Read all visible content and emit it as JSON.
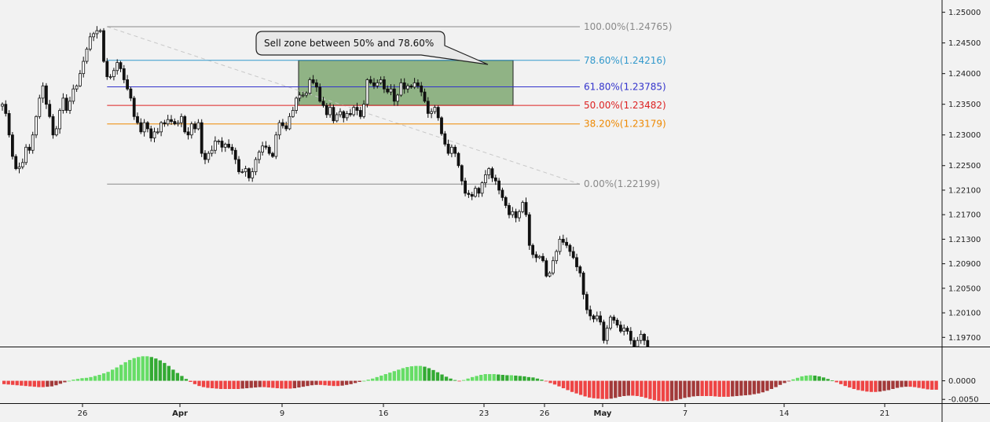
{
  "chart_data": {
    "type": "candlestick",
    "title": "",
    "x_ticks": [
      "26",
      "Apr",
      "9",
      "16",
      "23",
      "26",
      "May",
      "7",
      "14",
      "21"
    ],
    "x_ticks_bold": [
      "Apr",
      "May"
    ],
    "y_ticks": [
      "1.25000",
      "1.24500",
      "1.24000",
      "1.23500",
      "1.23000",
      "1.22500",
      "1.22100",
      "1.21700",
      "1.21300",
      "1.20900",
      "1.20500",
      "1.20100",
      "1.19700"
    ],
    "ylim": [
      1.1955,
      1.252
    ],
    "fib_levels": [
      {
        "label": "100.00%(1.24765)",
        "price": 1.24765,
        "color": "#8a8a8a"
      },
      {
        "label": "78.60%(1.24216)",
        "price": 1.24216,
        "color": "#3399cc"
      },
      {
        "label": "61.80%(1.23785)",
        "price": 1.23785,
        "color": "#3333cc"
      },
      {
        "label": "50.00%(1.23482)",
        "price": 1.23482,
        "color": "#dd2222"
      },
      {
        "label": "38.20%(1.23179)",
        "price": 1.23179,
        "color": "#ee8800"
      },
      {
        "label": "0.00%(1.22199)",
        "price": 1.22199,
        "color": "#8a8a8a"
      }
    ],
    "sell_zone": {
      "from": 0.5,
      "to": 0.786,
      "color": "#6a9a5a"
    },
    "callout": "Sell zone between 50% and 78.60%",
    "closes": [
      1.235,
      1.2335,
      1.23,
      1.2265,
      1.2245,
      1.2248,
      1.2255,
      1.228,
      1.2275,
      1.23,
      1.233,
      1.236,
      1.238,
      1.235,
      1.233,
      1.23,
      1.231,
      1.234,
      1.236,
      1.234,
      1.2355,
      1.2375,
      1.238,
      1.24,
      1.242,
      1.244,
      1.246,
      1.2465,
      1.247,
      1.247,
      1.242,
      1.2395,
      1.2395,
      1.2405,
      1.2418,
      1.2408,
      1.239,
      1.2375,
      1.236,
      1.233,
      1.232,
      1.2305,
      1.232,
      1.231,
      1.2295,
      1.2305,
      1.2305,
      1.232,
      1.2318,
      1.2325,
      1.2322,
      1.2318,
      1.232,
      1.233,
      1.2305,
      1.23,
      1.2318,
      1.231,
      1.232,
      1.227,
      1.226,
      1.227,
      1.2275,
      1.229,
      1.229,
      1.228,
      1.2285,
      1.228,
      1.2275,
      1.226,
      1.224,
      1.224,
      1.2245,
      1.223,
      1.224,
      1.226,
      1.2272,
      1.2282,
      1.228,
      1.227,
      1.2265,
      1.23,
      1.232,
      1.2315,
      1.231,
      1.233,
      1.234,
      1.236,
      1.2365,
      1.2365,
      1.2368,
      1.239,
      1.2385,
      1.2378,
      1.2355,
      1.2348,
      1.2333,
      1.2345,
      1.2323,
      1.2333,
      1.2338,
      1.2328,
      1.2335,
      1.2333,
      1.2345,
      1.234,
      1.233,
      1.235,
      1.239,
      1.2385,
      1.238,
      1.2385,
      1.239,
      1.2375,
      1.237,
      1.2375,
      1.2355,
      1.2365,
      1.2385,
      1.2375,
      1.238,
      1.2378,
      1.2385,
      1.238,
      1.237,
      1.2355,
      1.2335,
      1.2338,
      1.2345,
      1.2328,
      1.2302,
      1.2285,
      1.227,
      1.228,
      1.227,
      1.225,
      1.2225,
      1.2205,
      1.2203,
      1.22,
      1.2213,
      1.2205,
      1.2222,
      1.2235,
      1.2245,
      1.223,
      1.2225,
      1.221,
      1.2198,
      1.2185,
      1.217,
      1.2175,
      1.2165,
      1.2175,
      1.219,
      1.217,
      1.212,
      1.2105,
      1.21,
      1.2102,
      1.2095,
      1.207,
      1.2075,
      1.2095,
      1.211,
      1.213,
      1.2125,
      1.212,
      1.211,
      1.21,
      1.2085,
      1.2075,
      1.204,
      1.2015,
      1.2005,
      1.2,
      1.2005,
      1.1995,
      1.1965,
      1.1985,
      1.2003,
      1.1998,
      1.199,
      1.198,
      1.1985,
      1.198,
      1.1965,
      1.1955,
      1.1965,
      1.1975,
      1.1965,
      1.1955
    ],
    "gap_after_index": 184,
    "closes_after_gap": [
      1.196,
      1.1965,
      1.196,
      1.1965,
      1.1975,
      1.197,
      1.1985,
      1.1999,
      1.1955
    ],
    "macd_histogram": [
      -0.0009,
      -0.001,
      -0.0011,
      -0.0012,
      -0.0013,
      -0.0014,
      -0.0015,
      -0.0016,
      -0.0017,
      -0.0017,
      -0.0016,
      -0.0015,
      -0.0012,
      -0.0008,
      -0.0004,
      0.0,
      0.0003,
      0.0005,
      0.0007,
      0.0008,
      0.001,
      0.0013,
      0.0016,
      0.002,
      0.0024,
      0.003,
      0.0036,
      0.0043,
      0.005,
      0.0056,
      0.0061,
      0.0064,
      0.0066,
      0.0066,
      0.0064,
      0.006,
      0.0055,
      0.0048,
      0.004,
      0.003,
      0.0021,
      0.0013,
      0.0005,
      -0.0003,
      -0.0009,
      -0.0014,
      -0.0017,
      -0.0019,
      -0.002,
      -0.0021,
      -0.0022,
      -0.0022,
      -0.0022,
      -0.0022,
      -0.0022,
      -0.0021,
      -0.002,
      -0.0019,
      -0.0018,
      -0.0017,
      -0.0017,
      -0.0018,
      -0.0019,
      -0.002,
      -0.0021,
      -0.0021,
      -0.0021,
      -0.002,
      -0.0018,
      -0.0016,
      -0.0014,
      -0.0012,
      -0.0011,
      -0.0011,
      -0.0012,
      -0.0013,
      -0.0014,
      -0.0014,
      -0.0013,
      -0.0011,
      -0.0009,
      -0.0006,
      -0.0003,
      0.0,
      0.0003,
      0.0006,
      0.001,
      0.0014,
      0.0018,
      0.0022,
      0.0026,
      0.003,
      0.0034,
      0.0037,
      0.0039,
      0.004,
      0.004,
      0.0038,
      0.0034,
      0.0029,
      0.0023,
      0.0017,
      0.0011,
      0.0006,
      0.0002,
      -0.0001,
      0.0002,
      0.0006,
      0.001,
      0.0013,
      0.0016,
      0.0018,
      0.0018,
      0.0018,
      0.0017,
      0.0016,
      0.0015,
      0.0015,
      0.0014,
      0.0013,
      0.0012,
      0.001,
      0.0009,
      0.0006,
      0.0003,
      -0.0001,
      -0.0006,
      -0.001,
      -0.0015,
      -0.002,
      -0.0025,
      -0.003,
      -0.0034,
      -0.0038,
      -0.0042,
      -0.0045,
      -0.0047,
      -0.0048,
      -0.0049,
      -0.0049,
      -0.0048,
      -0.0046,
      -0.0043,
      -0.0041,
      -0.004,
      -0.004,
      -0.0041,
      -0.0043,
      -0.0046,
      -0.0049,
      -0.0052,
      -0.0054,
      -0.0055,
      -0.0055,
      -0.0054,
      -0.0052,
      -0.0049,
      -0.0046,
      -0.0044,
      -0.0042,
      -0.0041,
      -0.0041,
      -0.0041,
      -0.0041,
      -0.0042,
      -0.0043,
      -0.0043,
      -0.0043,
      -0.0042,
      -0.0041,
      -0.004,
      -0.0039,
      -0.0038,
      -0.0036,
      -0.0034,
      -0.0031,
      -0.0027,
      -0.0022,
      -0.0017,
      -0.0011,
      -0.0006,
      -0.0001,
      0.0004,
      0.0008,
      0.0012,
      0.0014,
      0.0015,
      0.0014,
      0.0012,
      0.0009,
      0.0005,
      0.0001,
      -0.0004,
      -0.0009,
      -0.0014,
      -0.0018,
      -0.0022,
      -0.0025,
      -0.0027,
      -0.0029,
      -0.003,
      -0.003,
      -0.0029,
      -0.0027,
      -0.0025,
      -0.0022,
      -0.0019,
      -0.0017,
      -0.0016,
      -0.0016,
      -0.0017,
      -0.0019,
      -0.0021,
      -0.0023,
      -0.0024,
      -0.0024
    ],
    "macd_y_ticks": [
      "0.0000",
      "-0.0050"
    ],
    "macd_ylim": [
      -0.0058,
      0.009
    ],
    "colors": {
      "bull_up": "#66dd66",
      "bull_down": "#33aa33",
      "bear_down": "#ee4444",
      "bear_up": "#a23a3a",
      "candle": "#111111",
      "fib_trend": "#c8c8c8"
    }
  }
}
